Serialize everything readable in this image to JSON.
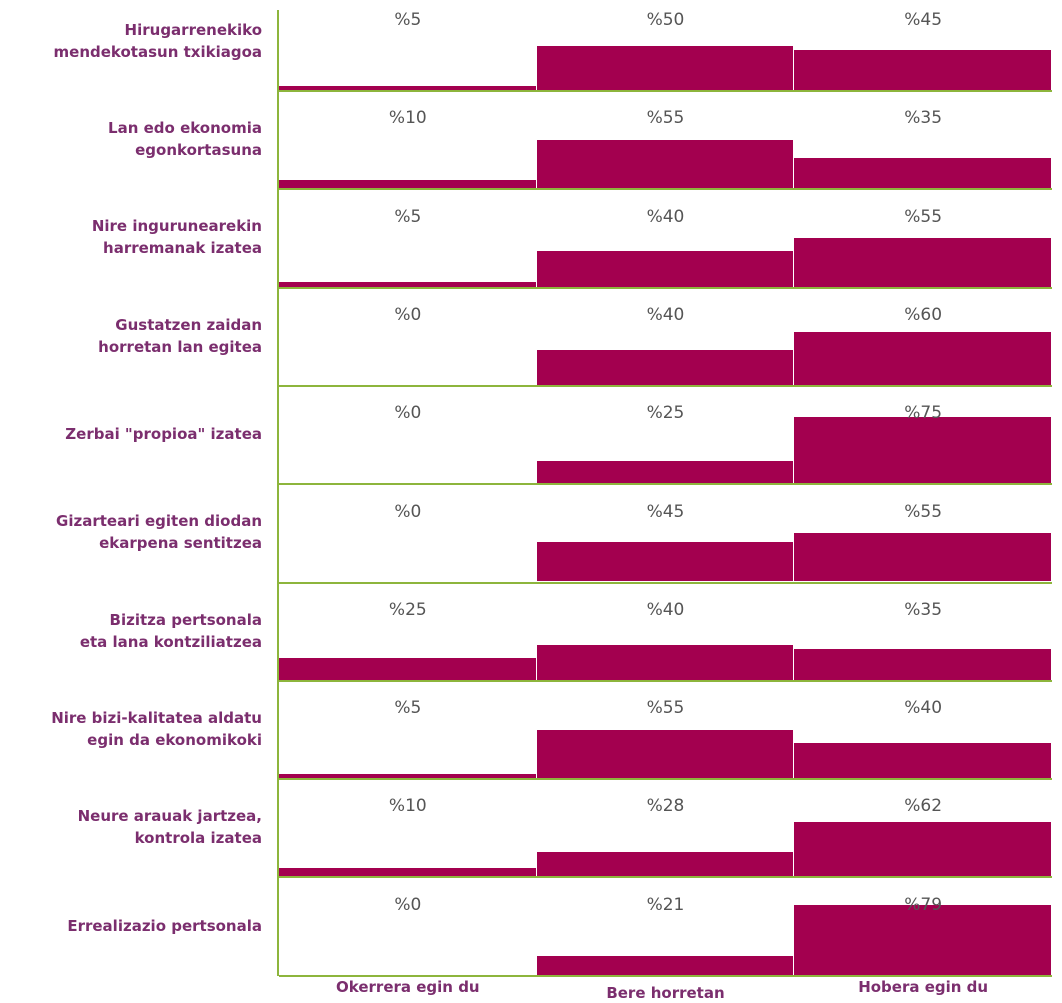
{
  "chart_data": {
    "type": "row-columns",
    "categories": [
      "Hirugarrenekiko\nmendekotasun txikiagoa",
      "Lan edo ekonomia\negonkortasuna",
      "Nire ingurunearekin\nharremanak izatea",
      "Gustatzen zaidan\nhorretan lan egitea",
      "Zerbai \"propioa\" izatea",
      "Gizarteari egiten diodan\nekarpena sentitzea",
      "Bizitza pertsonala\neta lana kontziliatzea",
      "Nire bizi-kalitatea aldatu\negin da ekonomikoki",
      "Neure arauak jartzea,\nkontrola izatea",
      "Errealizazio pertsonala"
    ],
    "series": [
      {
        "name": "Okerrera egin du",
        "color": "#a3004f",
        "values": [
          5,
          10,
          5,
          0,
          0,
          0,
          25,
          5,
          10,
          0
        ],
        "value_labels": [
          "%5",
          "%10",
          "%5",
          "%0",
          "%0",
          "%0",
          "%25",
          "%5",
          "%10",
          "%0"
        ]
      },
      {
        "name": "Bere horretan",
        "color": "#a3004f",
        "values": [
          50,
          55,
          40,
          40,
          25,
          45,
          40,
          55,
          28,
          21
        ],
        "value_labels": [
          "%50",
          "%55",
          "%40",
          "%40",
          "%25",
          "%45",
          "%40",
          "%55",
          "%28",
          "%21"
        ]
      },
      {
        "name": "Hobera egin du",
        "color": "#a3004f",
        "values": [
          45,
          35,
          55,
          60,
          75,
          55,
          35,
          40,
          62,
          79
        ],
        "value_labels": [
          "%45",
          "%35",
          "%55",
          "%60",
          "%75",
          "%55",
          "%35",
          "%40",
          "%62",
          "%79"
        ]
      }
    ]
  }
}
